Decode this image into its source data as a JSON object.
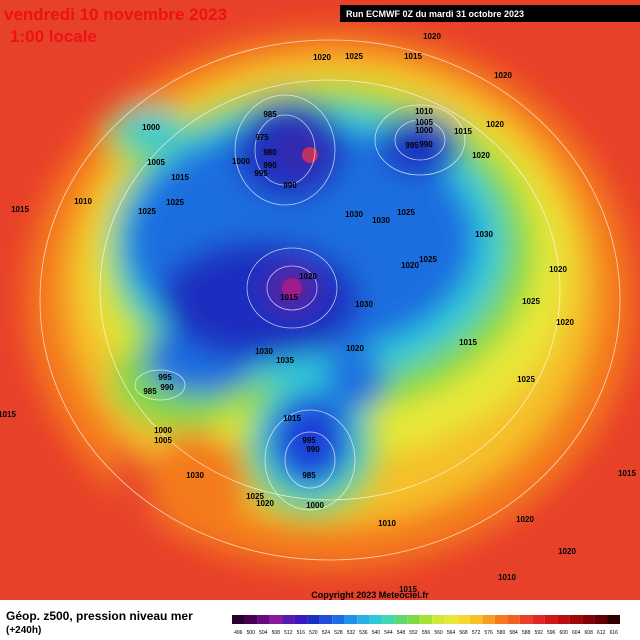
{
  "header": {
    "title": "vendredi 10 novembre 2023",
    "subtitle": "1:00 locale",
    "run": "Run ECMWF 0Z du mardi 31 octobre 2023"
  },
  "footer": {
    "caption": "Géop. z500, pression niveau mer",
    "lead": "(+240h)",
    "copyright": "Copyright 2023 Meteociel.fr"
  },
  "legend": {
    "labels": [
      "496",
      "500",
      "504",
      "508",
      "512",
      "516",
      "520",
      "524",
      "528",
      "532",
      "536",
      "540",
      "544",
      "548",
      "552",
      "556",
      "560",
      "564",
      "568",
      "572",
      "576",
      "580",
      "584",
      "588",
      "592",
      "596",
      "600",
      "604",
      "608",
      "612",
      "616"
    ]
  },
  "pressure_labels": [
    "1020",
    "1025",
    "1015",
    "1020",
    "1020",
    "1000",
    "985",
    "975",
    "980",
    "990",
    "1000",
    "995",
    "990",
    "1005",
    "1015",
    "1010",
    "1005",
    "1000",
    "995",
    "990",
    "1015",
    "1020",
    "1020",
    "1015",
    "1010",
    "1025",
    "1025",
    "1030",
    "1030",
    "1025",
    "1030",
    "1020",
    "1025",
    "1020",
    "1015",
    "1030",
    "1020",
    "1025",
    "1020",
    "1015",
    "1030",
    "1035",
    "1020",
    "995",
    "990",
    "985",
    "1025",
    "1000",
    "1005",
    "1015",
    "995",
    "990",
    "985",
    "1000",
    "1030",
    "1025",
    "1020",
    "1015",
    "1020",
    "1010",
    "1015",
    "1010",
    "1020",
    "1015"
  ]
}
